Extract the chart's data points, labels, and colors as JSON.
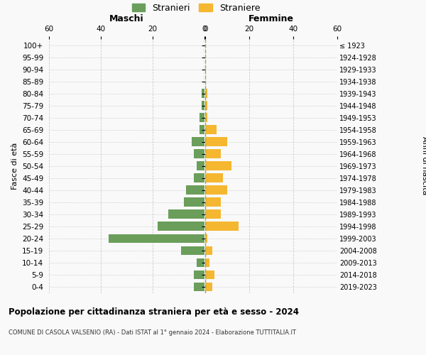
{
  "age_groups": [
    "100+",
    "95-99",
    "90-94",
    "85-89",
    "80-84",
    "75-79",
    "70-74",
    "65-69",
    "60-64",
    "55-59",
    "50-54",
    "45-49",
    "40-44",
    "35-39",
    "30-34",
    "25-29",
    "20-24",
    "15-19",
    "10-14",
    "5-9",
    "0-4"
  ],
  "birth_years": [
    "≤ 1923",
    "1924-1928",
    "1929-1933",
    "1934-1938",
    "1939-1943",
    "1944-1948",
    "1949-1953",
    "1954-1958",
    "1959-1963",
    "1964-1968",
    "1969-1973",
    "1974-1978",
    "1979-1983",
    "1984-1988",
    "1989-1993",
    "1994-1998",
    "1999-2003",
    "2004-2008",
    "2009-2013",
    "2014-2018",
    "2019-2023"
  ],
  "maschi": [
    0,
    0,
    0,
    0,
    1,
    1,
    2,
    2,
    5,
    4,
    3,
    4,
    7,
    8,
    14,
    18,
    37,
    9,
    3,
    4,
    4
  ],
  "femmine": [
    0,
    0,
    0,
    0,
    1,
    1,
    1,
    5,
    10,
    7,
    12,
    8,
    10,
    7,
    7,
    15,
    1,
    3,
    2,
    4,
    3
  ],
  "maschi_color": "#6a9e5a",
  "femmine_color": "#f5b730",
  "center_line_color": "#999966",
  "bg_color": "#f9f9f9",
  "grid_color": "#cccccc",
  "title": "Popolazione per cittadinanza straniera per età e sesso - 2024",
  "subtitle": "COMUNE DI CASOLA VALSENIO (RA) - Dati ISTAT al 1° gennaio 2024 - Elaborazione TUTTITALIA.IT",
  "xlabel_left": "Maschi",
  "xlabel_right": "Femmine",
  "ylabel_left": "Fasce di età",
  "ylabel_right": "Anni di nascita",
  "legend_maschi": "Stranieri",
  "legend_femmine": "Straniere",
  "xlim": 60
}
